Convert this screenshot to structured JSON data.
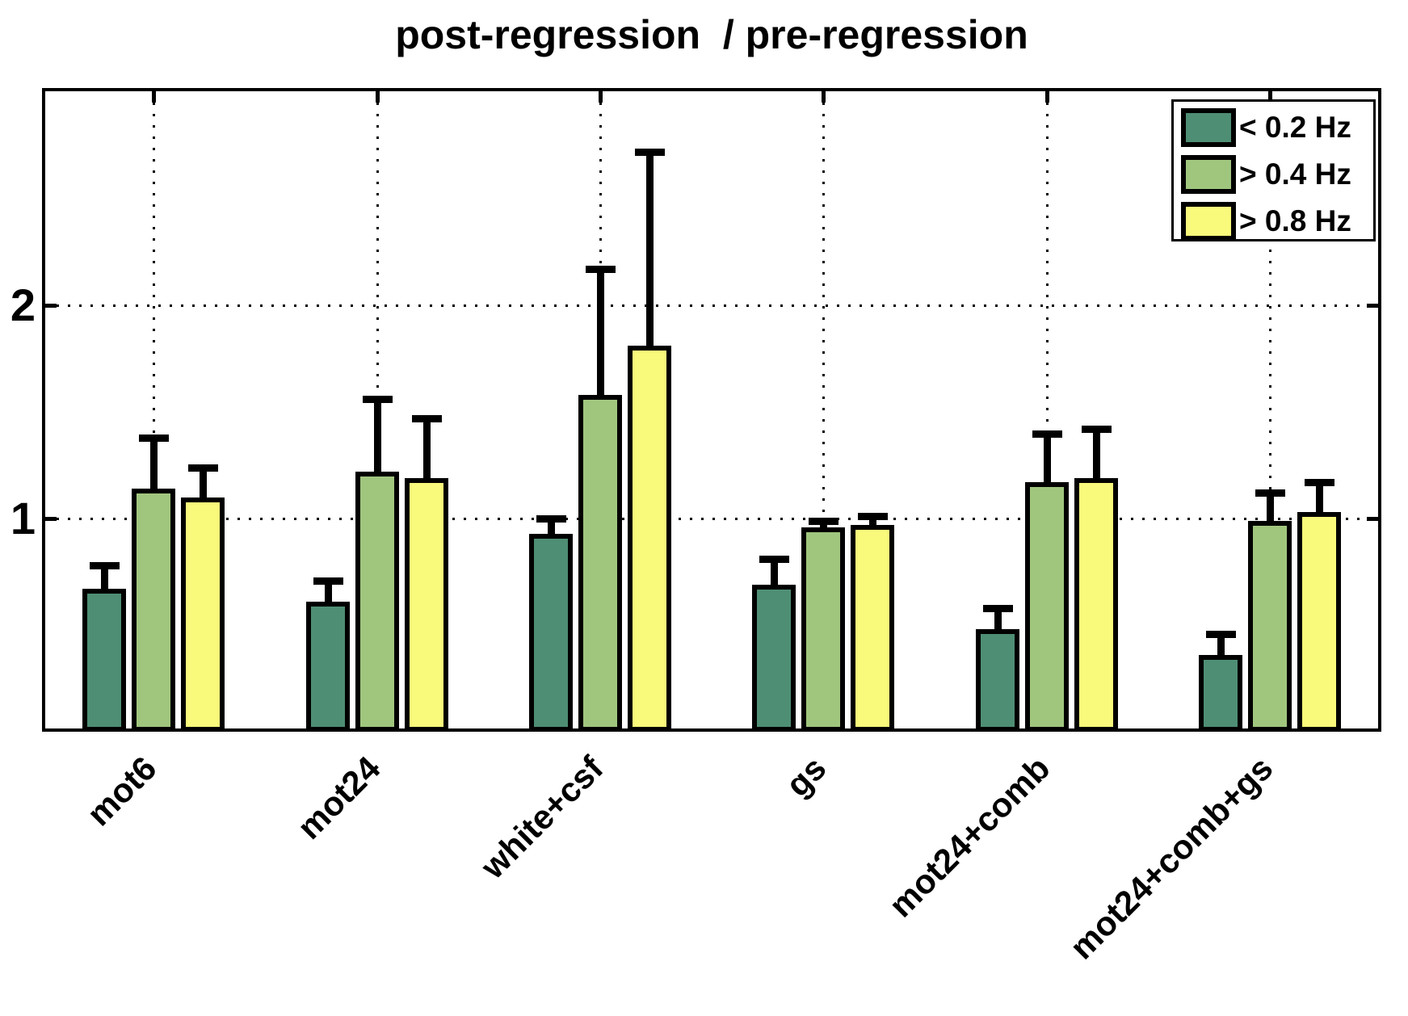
{
  "chart_data": {
    "type": "bar",
    "title": "post-regression  / pre-regression",
    "categories": [
      "mot6",
      "mot24",
      "white+csf",
      "gs",
      "mot24+comb",
      "mot24+comb+gs"
    ],
    "series": [
      {
        "name": "< 0.2 Hz",
        "color": "#4e8e74",
        "values": [
          0.67,
          0.61,
          0.93,
          0.69,
          0.48,
          0.36
        ],
        "errors_plus": [
          0.11,
          0.1,
          0.07,
          0.12,
          0.1,
          0.1
        ]
      },
      {
        "name": "> 0.4 Hz",
        "color": "#a0c67e",
        "values": [
          1.14,
          1.22,
          1.58,
          0.96,
          1.17,
          0.99
        ],
        "errors_plus": [
          0.24,
          0.34,
          0.59,
          0.03,
          0.23,
          0.13
        ]
      },
      {
        "name": "> 0.8 Hz",
        "color": "#f9f97b",
        "values": [
          1.1,
          1.19,
          1.81,
          0.97,
          1.19,
          1.03
        ],
        "errors_plus": [
          0.14,
          0.28,
          0.91,
          0.04,
          0.23,
          0.14
        ]
      }
    ],
    "ylabel": "",
    "xlabel": "",
    "yticks": [
      1,
      2
    ],
    "ylim": [
      0,
      3.02
    ],
    "grid": "dotted, horizontal at yticks and vertical at category centers",
    "legend_position": "top-right",
    "bar_outline_color": "#000000",
    "background_color": "#ffffff",
    "error_bars": "upper only, black"
  }
}
